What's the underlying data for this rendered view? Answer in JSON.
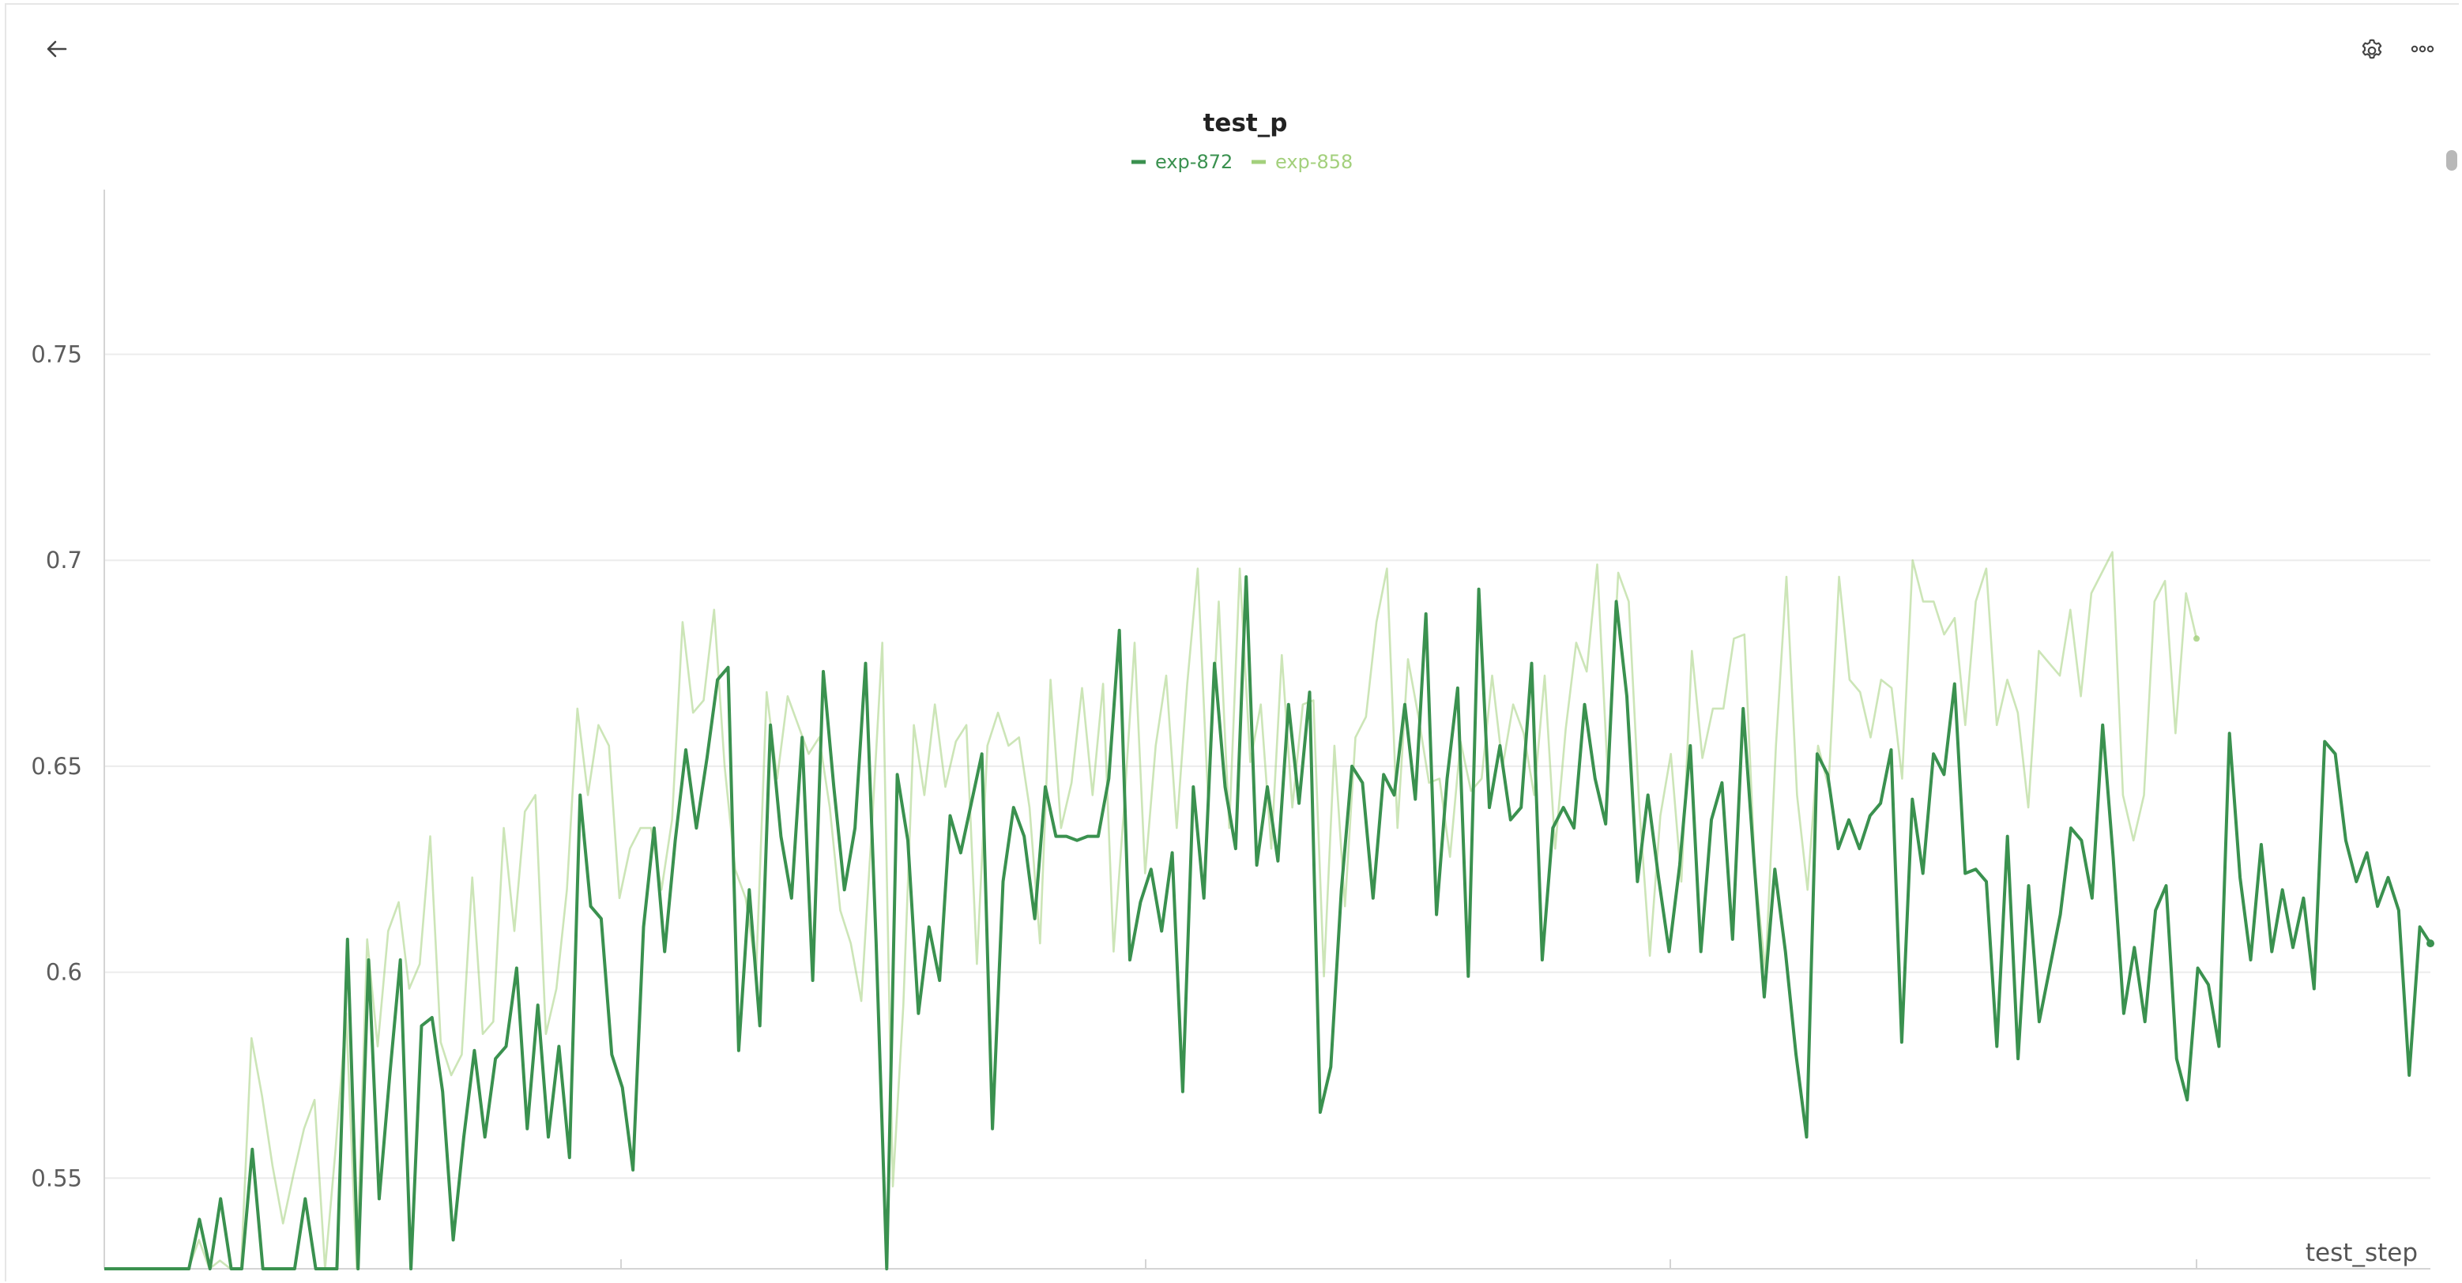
{
  "toolbar": {
    "back_icon": "arrow-left-icon",
    "settings_icon": "gear-icon",
    "more_icon": "more-horizontal-icon"
  },
  "colors": {
    "exp_872": "#3a914f",
    "exp_858": "#a3d07c",
    "grid": "#ececec",
    "axis": "#d4d4d4"
  },
  "chart_data": {
    "type": "line",
    "title": "test_p",
    "xlabel": "test_step",
    "ylabel": "",
    "ylim": [
      0.528,
      0.79
    ],
    "yticks": [
      "0.55",
      "0.6",
      "0.65",
      "0.7",
      "0.75"
    ],
    "xticks_shown": false,
    "grid": true,
    "legend": "top-center",
    "series": [
      {
        "name": "exp-872",
        "color": "#3a914f",
        "values": [
          0.528,
          0.528,
          0.528,
          0.528,
          0.528,
          0.528,
          0.528,
          0.528,
          0.528,
          0.54,
          0.528,
          0.545,
          0.528,
          0.528,
          0.557,
          0.528,
          0.528,
          0.528,
          0.528,
          0.545,
          0.528,
          0.528,
          0.528,
          0.608,
          0.528,
          0.603,
          0.545,
          0.575,
          0.603,
          0.528,
          0.587,
          0.589,
          0.571,
          0.535,
          0.56,
          0.581,
          0.56,
          0.579,
          0.582,
          0.601,
          0.562,
          0.592,
          0.56,
          0.582,
          0.555,
          0.643,
          0.616,
          0.613,
          0.58,
          0.572,
          0.552,
          0.611,
          0.635,
          0.605,
          0.632,
          0.654,
          0.635,
          0.652,
          0.671,
          0.674,
          0.581,
          0.62,
          0.587,
          0.66,
          0.633,
          0.618,
          0.657,
          0.598,
          0.673,
          0.645,
          0.62,
          0.635,
          0.675,
          0.607,
          0.528,
          0.648,
          0.632,
          0.59,
          0.611,
          0.598,
          0.638,
          0.629,
          0.641,
          0.653,
          0.562,
          0.622,
          0.64,
          0.633,
          0.613,
          0.645,
          0.633,
          0.633,
          0.632,
          0.633,
          0.633,
          0.647,
          0.683,
          0.603,
          0.617,
          0.625,
          0.61,
          0.629,
          0.571,
          0.645,
          0.618,
          0.675,
          0.645,
          0.63,
          0.696,
          0.626,
          0.645,
          0.627,
          0.665,
          0.641,
          0.668,
          0.566,
          0.577,
          0.62,
          0.65,
          0.646,
          0.618,
          0.648,
          0.643,
          0.665,
          0.642,
          0.687,
          0.614,
          0.647,
          0.669,
          0.599,
          0.693,
          0.64,
          0.655,
          0.637,
          0.64,
          0.675,
          0.603,
          0.635,
          0.64,
          0.635,
          0.665,
          0.647,
          0.636,
          0.69,
          0.667,
          0.622,
          0.643,
          0.623,
          0.605,
          0.626,
          0.655,
          0.605,
          0.637,
          0.646,
          0.608,
          0.664,
          0.628,
          0.594,
          0.625,
          0.605,
          0.58,
          0.56,
          0.653,
          0.648,
          0.63,
          0.637,
          0.63,
          0.638,
          0.641,
          0.654,
          0.583,
          0.642,
          0.624,
          0.653,
          0.648,
          0.67,
          0.624,
          0.625,
          0.622,
          0.582,
          0.633,
          0.579,
          0.621,
          0.588,
          0.601,
          0.614,
          0.635,
          0.632,
          0.618,
          0.66,
          0.628,
          0.59,
          0.606,
          0.588,
          0.615,
          0.621,
          0.579,
          0.569,
          0.601,
          0.597,
          0.582,
          0.658,
          0.623,
          0.603,
          0.631,
          0.605,
          0.62,
          0.606,
          0.618,
          0.596,
          0.656,
          0.653,
          0.632,
          0.622,
          0.629,
          0.616,
          0.623,
          0.615,
          0.575,
          0.611,
          0.607
        ]
      },
      {
        "name": "exp-858",
        "color": "#a3d07c",
        "values": [
          0.528,
          0.528,
          0.528,
          0.528,
          0.528,
          0.528,
          0.528,
          0.528,
          0.528,
          0.535,
          0.528,
          0.53,
          0.528,
          0.528,
          0.584,
          0.57,
          0.553,
          0.539,
          0.551,
          0.562,
          0.569,
          0.528,
          0.557,
          0.59,
          0.528,
          0.608,
          0.582,
          0.61,
          0.617,
          0.596,
          0.602,
          0.633,
          0.583,
          0.575,
          0.58,
          0.623,
          0.585,
          0.588,
          0.635,
          0.61,
          0.639,
          0.643,
          0.585,
          0.596,
          0.62,
          0.664,
          0.643,
          0.66,
          0.655,
          0.618,
          0.63,
          0.635,
          0.635,
          0.62,
          0.637,
          0.685,
          0.663,
          0.666,
          0.688,
          0.65,
          0.625,
          0.618,
          0.6,
          0.668,
          0.647,
          0.667,
          0.66,
          0.653,
          0.657,
          0.64,
          0.615,
          0.607,
          0.593,
          0.635,
          0.68,
          0.548,
          0.592,
          0.66,
          0.643,
          0.665,
          0.645,
          0.656,
          0.66,
          0.602,
          0.655,
          0.663,
          0.655,
          0.657,
          0.64,
          0.607,
          0.671,
          0.635,
          0.646,
          0.669,
          0.643,
          0.67,
          0.605,
          0.64,
          0.68,
          0.624,
          0.655,
          0.672,
          0.635,
          0.67,
          0.698,
          0.641,
          0.69,
          0.635,
          0.698,
          0.651,
          0.665,
          0.63,
          0.677,
          0.64,
          0.665,
          0.666,
          0.599,
          0.655,
          0.616,
          0.657,
          0.662,
          0.685,
          0.698,
          0.635,
          0.676,
          0.662,
          0.646,
          0.647,
          0.628,
          0.656,
          0.644,
          0.647,
          0.672,
          0.65,
          0.665,
          0.658,
          0.643,
          0.672,
          0.63,
          0.659,
          0.68,
          0.673,
          0.699,
          0.648,
          0.697,
          0.69,
          0.64,
          0.604,
          0.638,
          0.653,
          0.622,
          0.678,
          0.652,
          0.664,
          0.664,
          0.681,
          0.682,
          0.625,
          0.6,
          0.655,
          0.696,
          0.643,
          0.62,
          0.655,
          0.645,
          0.696,
          0.671,
          0.668,
          0.657,
          0.671,
          0.669,
          0.647,
          0.7,
          0.69,
          0.69,
          0.682,
          0.686,
          0.66,
          0.69,
          0.698,
          0.66,
          0.671,
          0.663,
          0.64,
          0.678,
          0.675,
          0.672,
          0.688,
          0.667,
          0.692,
          0.697,
          0.702,
          0.643,
          0.632,
          0.643,
          0.69,
          0.695,
          0.658,
          0.692,
          0.681
        ]
      }
    ]
  }
}
